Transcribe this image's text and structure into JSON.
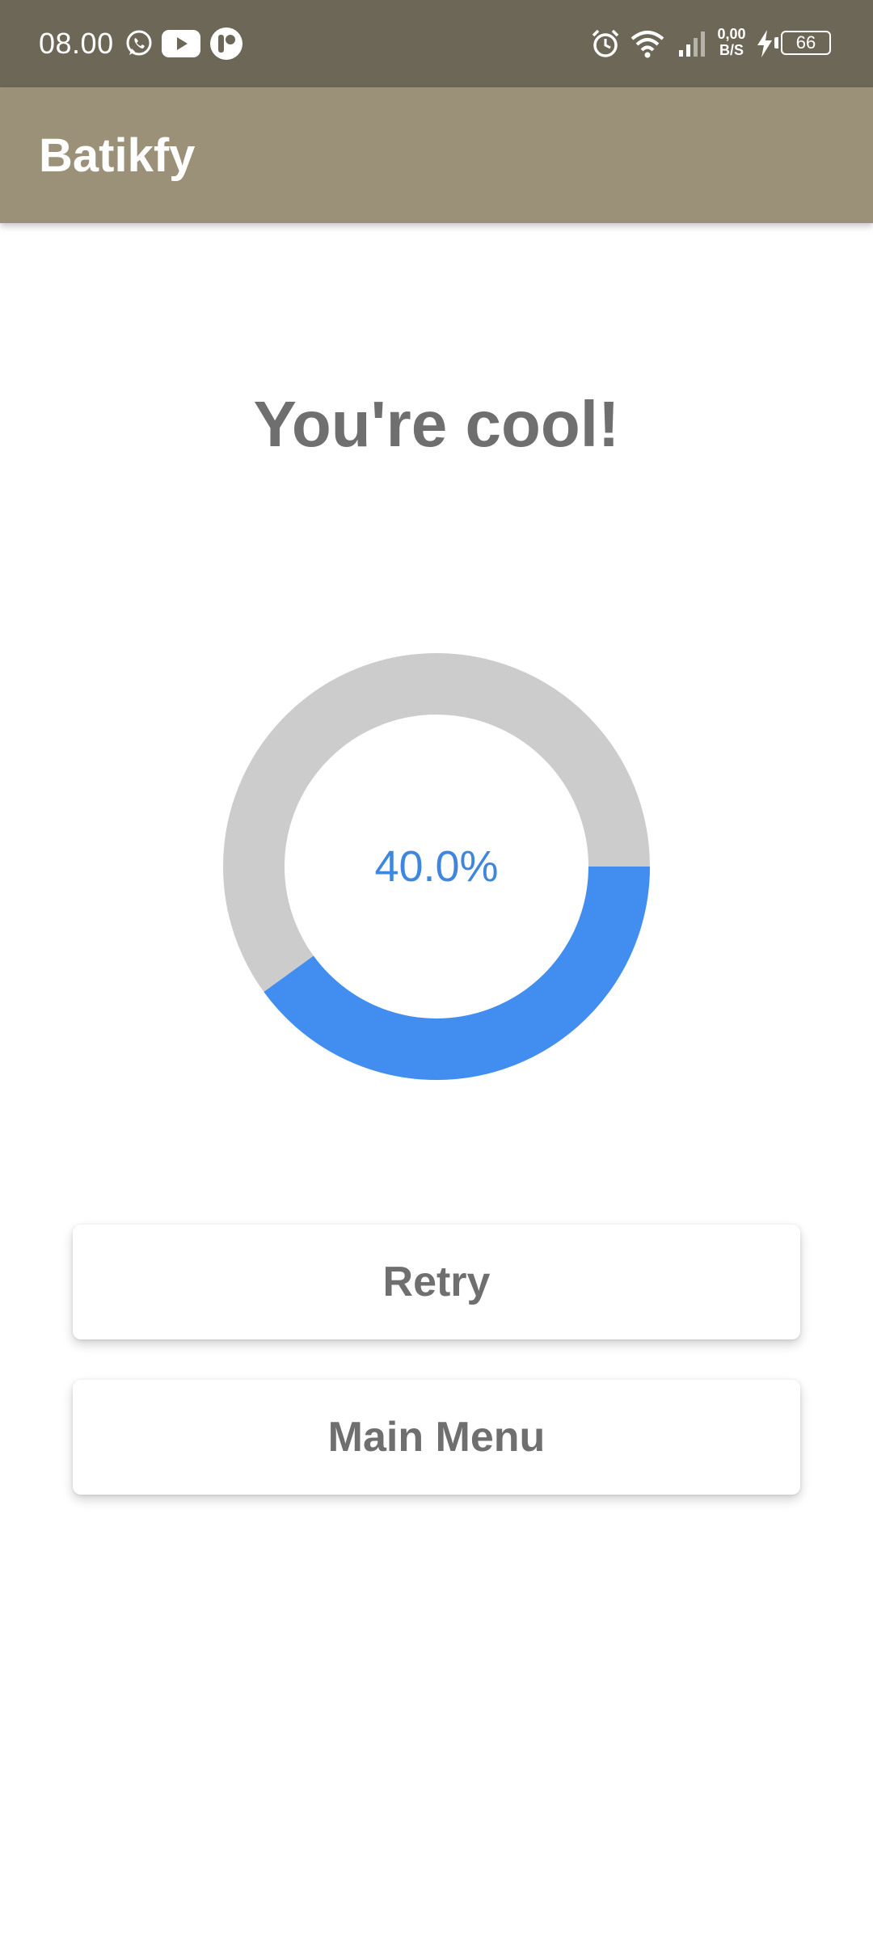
{
  "status_bar": {
    "time": "08.00",
    "net_speed_value": "0,00",
    "net_speed_unit": "B/S",
    "battery_level": "66",
    "icons": [
      "whatsapp-icon",
      "youtube-icon",
      "app-notification-icon",
      "alarm-icon",
      "wifi-icon",
      "signal-icon",
      "charging-icon",
      "battery-icon"
    ]
  },
  "app_bar": {
    "title": "Batikfy"
  },
  "result": {
    "headline": "You're cool!",
    "score_label": "40.0%"
  },
  "chart_data": {
    "type": "pie",
    "style": "donut",
    "slices": [
      {
        "label": "score",
        "value": 40.0,
        "color": "#428ef0"
      },
      {
        "label": "remaining",
        "value": 60.0,
        "color": "#cccccc"
      }
    ],
    "center_label": "40.0%"
  },
  "buttons": {
    "retry_label": "Retry",
    "main_menu_label": "Main Menu"
  },
  "colors": {
    "status_bar": "#6c6756",
    "app_bar": "#9b9178",
    "progress": "#428ef0",
    "track": "#cccccc",
    "label": "#3f86de",
    "text_gray": "#6f6f6f"
  }
}
